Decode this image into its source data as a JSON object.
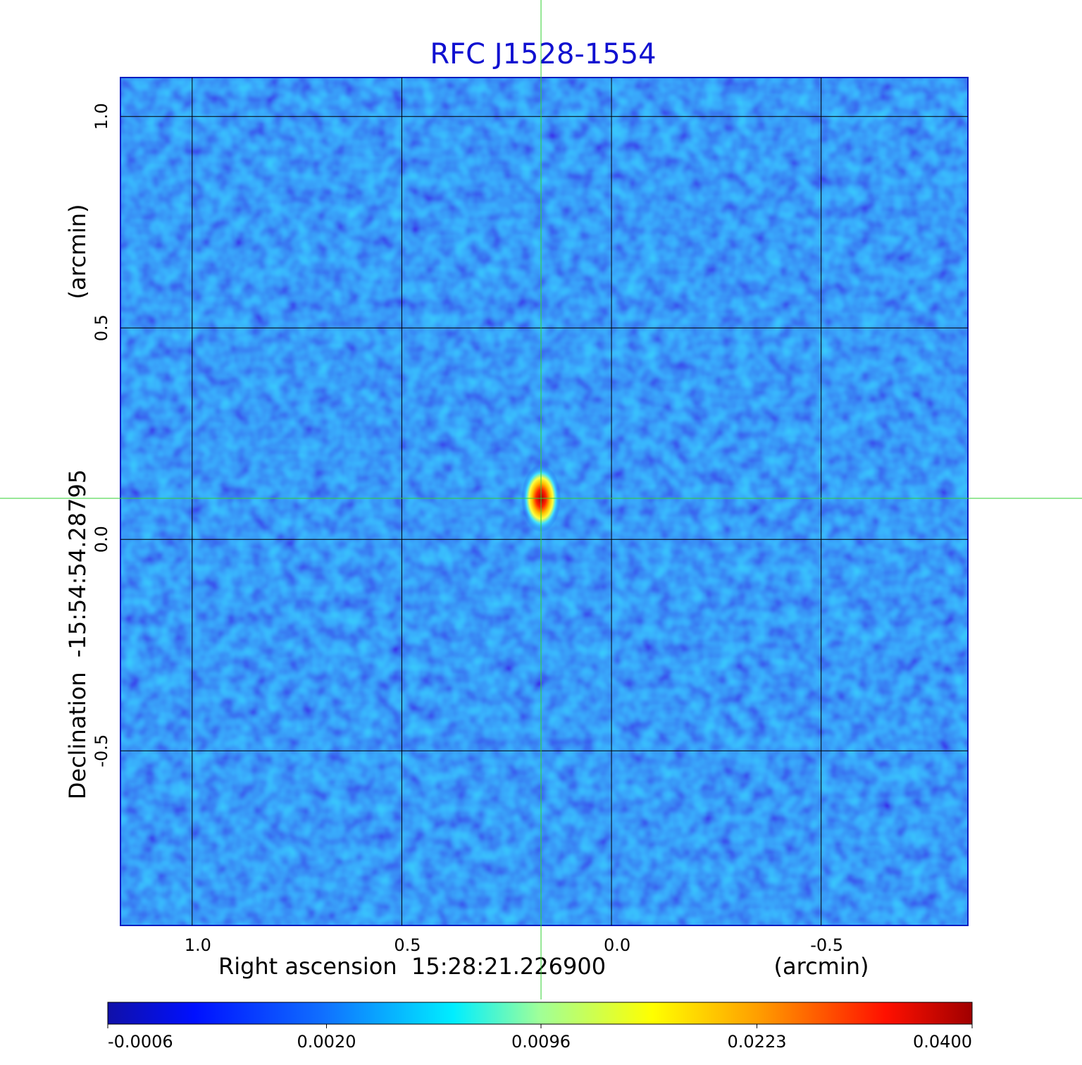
{
  "chart_data": {
    "type": "image",
    "title": "RFC J1528-1554",
    "xlabel": "Right ascension  15:28:21.226900",
    "xunit": "(arcmin)",
    "ylabel": "Declination  -15:54:54.28795",
    "yunit": "(arcmin)",
    "xlim": [
      1.171,
      -0.85
    ],
    "ylim": [
      -0.913,
      1.092
    ],
    "xticks": [
      {
        "value": 1.0,
        "label": "1.0"
      },
      0.5,
      {
        "value": 0.0,
        "label": "0.0"
      },
      -0.5
    ],
    "yticks": [
      {
        "value": 1.0,
        "label": "1.0"
      },
      0.5,
      {
        "value": 0.0,
        "label": "0.0"
      },
      -0.5
    ],
    "grid": true,
    "crosshair": {
      "x": 0.168,
      "y": 0.097
    },
    "colorbar": {
      "scale": "sqrt",
      "lim": [
        -0.0006,
        0.04
      ],
      "ticks": [
        -0.0006,
        {
          "value": 0.002,
          "label": "0.0020"
        },
        0.0096,
        0.0223,
        {
          "value": 0.04,
          "label": "0.0400"
        }
      ]
    }
  }
}
